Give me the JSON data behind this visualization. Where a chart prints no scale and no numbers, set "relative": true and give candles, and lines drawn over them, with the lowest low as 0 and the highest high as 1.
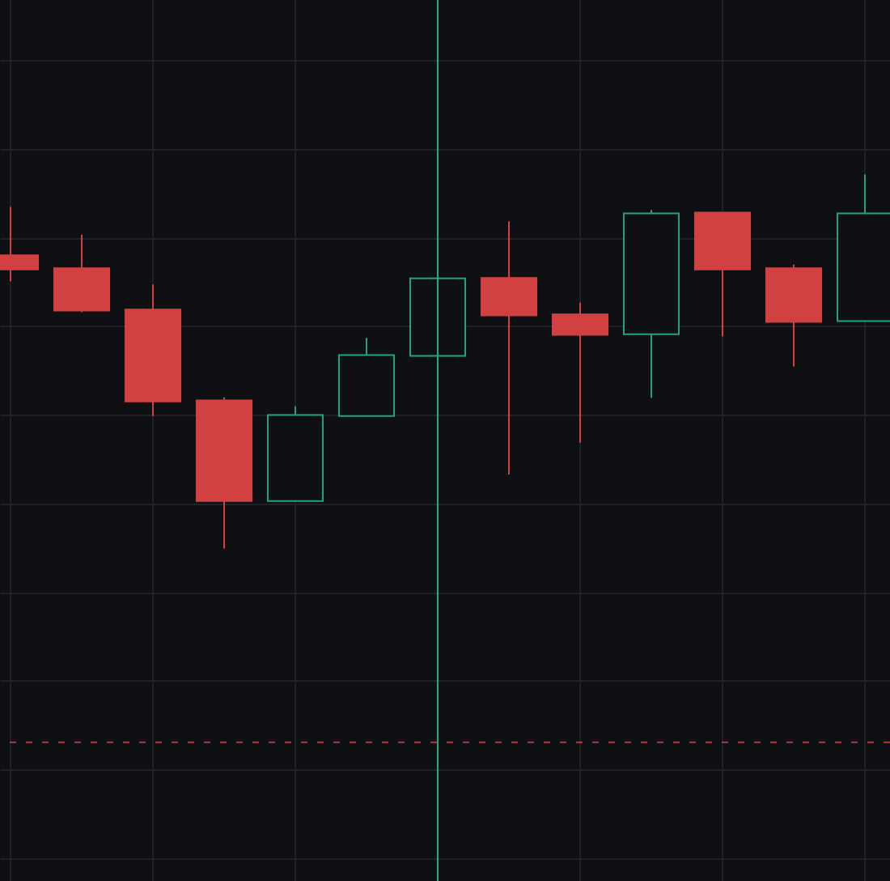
{
  "chart_data": {
    "type": "candlestick",
    "categories": [
      null,
      null,
      null,
      null,
      null,
      null,
      null,
      null,
      null,
      null,
      null,
      null,
      null
    ],
    "ohlc": [
      [
        0.784,
        0.913,
        0.714,
        0.746
      ],
      [
        0.749,
        0.839,
        0.632,
        0.636
      ],
      [
        0.639,
        0.706,
        0.354,
        0.393
      ],
      [
        0.396,
        0.404,
        0,
        0.127
      ],
      [
        0.127,
        0.38,
        0.127,
        0.357
      ],
      [
        0.354,
        0.563,
        0.354,
        0.517
      ],
      [
        0.515,
        0.722,
        0.515,
        0.722
      ],
      [
        0.723,
        0.874,
        0.198,
        0.623
      ],
      [
        0.626,
        0.657,
        0.283,
        0.571
      ],
      [
        0.573,
        0.905,
        0.403,
        0.896
      ],
      [
        0.898,
        0.898,
        0.567,
        0.746
      ],
      [
        0.749,
        0.759,
        0.487,
        0.606
      ],
      [
        0.608,
        1,
        0.608,
        0.896
      ]
    ],
    "colors": [
      "#d24141",
      "#d24141",
      "#d24141",
      "#d24141",
      "#26a17e",
      "#26a17e",
      "#26a17e",
      "#d24141",
      "#d24141",
      "#26a17e",
      "#d24141",
      "#d24141",
      "#26a17e"
    ],
    "relative": true,
    "grid": true,
    "tick_labels": false,
    "ref_lines": [
      {
        "axis": "y",
        "value": -0.518,
        "color": "#b83838",
        "line_style": "dashed"
      }
    ]
  }
}
